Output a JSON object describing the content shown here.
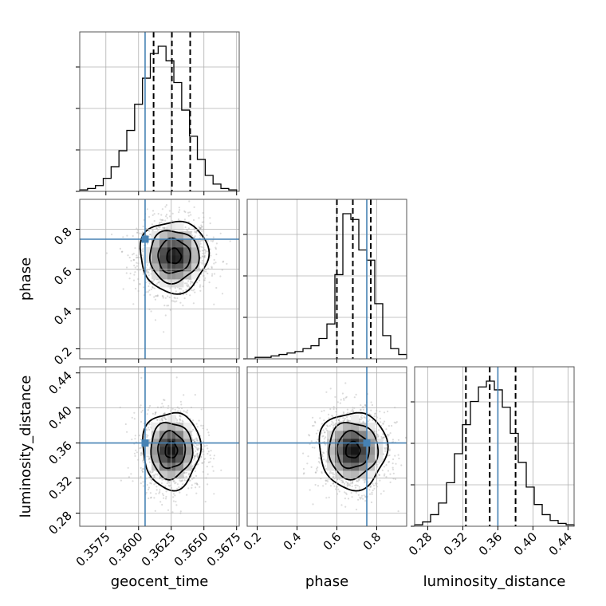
{
  "chart_data": {
    "type": "corner",
    "grid": true,
    "parameters": [
      "geocent_time",
      "phase",
      "luminosity_distance"
    ],
    "axes": {
      "geocent_time": {
        "label": "geocent_time",
        "range": [
          0.3555,
          0.3677
        ],
        "ticks": [
          0.3575,
          0.36,
          0.3625,
          0.365,
          0.3675
        ],
        "tick_labels": [
          "0.3575",
          "0.3600",
          "0.3625",
          "0.3650",
          "0.3675"
        ]
      },
      "phase": {
        "label": "phase",
        "range": [
          0.15,
          0.95
        ],
        "ticks": [
          0.2,
          0.4,
          0.6,
          0.8
        ],
        "tick_labels": [
          "0.2",
          "0.4",
          "0.6",
          "0.8"
        ]
      },
      "luminosity_distance": {
        "label": "luminosity_distance",
        "range": [
          0.265,
          0.447
        ],
        "ticks": [
          0.28,
          0.32,
          0.36,
          0.4,
          0.44
        ],
        "tick_labels": [
          "0.28",
          "0.32",
          "0.36",
          "0.40",
          "0.44"
        ]
      }
    },
    "truths": {
      "geocent_time": 0.3605,
      "phase": 0.75,
      "luminosity_distance": 0.36
    },
    "histograms": {
      "geocent_time": {
        "quantiles": [
          0.36115,
          0.36255,
          0.36395
        ],
        "bins": [
          0.3555,
          0.3561,
          0.3567,
          0.3573,
          0.3579,
          0.3585,
          0.3591,
          0.3597,
          0.3603,
          0.3609,
          0.3615,
          0.3621,
          0.3627,
          0.3633,
          0.3639,
          0.3645,
          0.3651,
          0.3657,
          0.3663,
          0.3669,
          0.3675
        ],
        "counts": [
          1,
          2,
          4,
          9,
          17,
          28,
          42,
          60,
          78,
          95,
          100,
          90,
          75,
          56,
          38,
          22,
          11,
          5,
          2,
          1
        ]
      },
      "phase": {
        "quantiles": [
          0.6,
          0.68,
          0.77
        ],
        "bins": [
          0.15,
          0.19,
          0.23,
          0.27,
          0.31,
          0.35,
          0.39,
          0.43,
          0.47,
          0.51,
          0.55,
          0.59,
          0.63,
          0.67,
          0.71,
          0.75,
          0.79,
          0.83,
          0.87,
          0.91,
          0.95
        ],
        "counts": [
          0,
          1,
          1,
          2,
          3,
          4,
          5,
          7,
          9,
          14,
          24,
          58,
          100,
          96,
          75,
          68,
          38,
          16,
          7,
          3
        ]
      },
      "luminosity_distance": {
        "quantiles": [
          0.3235,
          0.3507,
          0.3802
        ],
        "bins": [
          0.265,
          0.2741,
          0.2832,
          0.2923,
          0.3014,
          0.3105,
          0.3196,
          0.3287,
          0.3378,
          0.3469,
          0.356,
          0.3651,
          0.3742,
          0.3833,
          0.3924,
          0.4015,
          0.4106,
          0.4197,
          0.4288,
          0.4379,
          0.447
        ],
        "counts": [
          1,
          3,
          8,
          16,
          30,
          50,
          70,
          86,
          96,
          100,
          94,
          82,
          64,
          44,
          27,
          15,
          8,
          4,
          2,
          1
        ]
      }
    },
    "joint_2d": [
      {
        "x": "geocent_time",
        "y": "phase",
        "mean": [
          0.3627,
          0.665
        ],
        "sd": [
          0.0013,
          0.09
        ]
      },
      {
        "x": "geocent_time",
        "y": "luminosity_distance",
        "mean": [
          0.3625,
          0.352
        ],
        "sd": [
          0.0011,
          0.022
        ]
      },
      {
        "x": "phase",
        "y": "luminosity_distance",
        "mean": [
          0.68,
          0.352
        ],
        "sd": [
          0.085,
          0.022
        ]
      }
    ]
  }
}
